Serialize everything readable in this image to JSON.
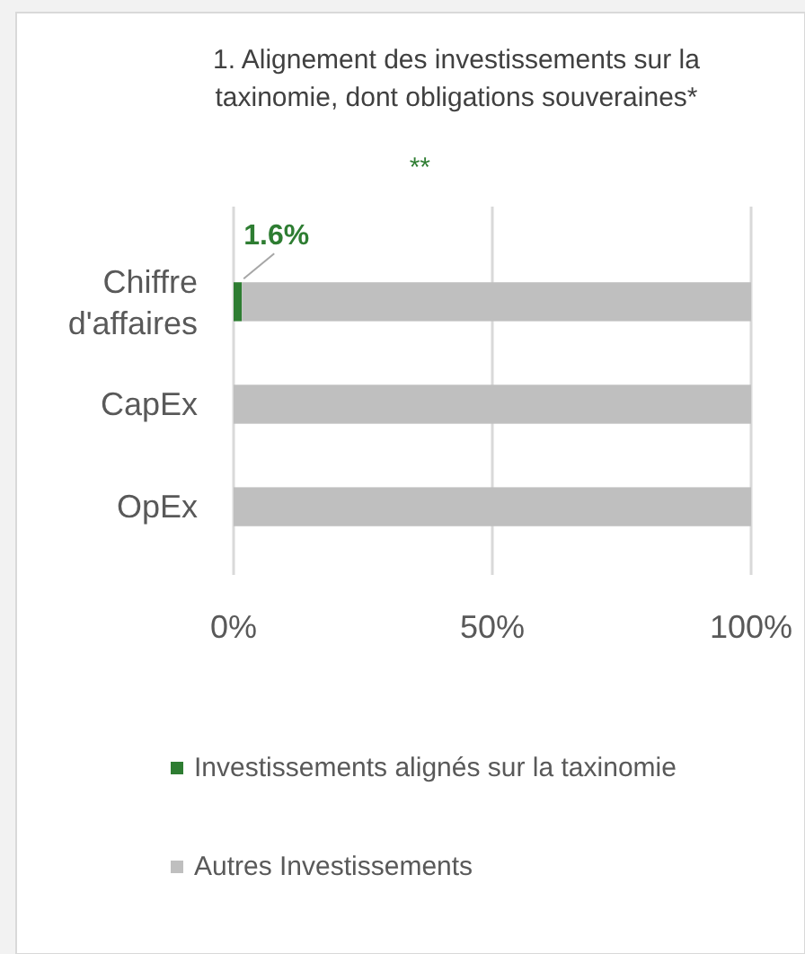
{
  "chart_data": {
    "type": "bar",
    "orientation": "horizontal",
    "stacked": true,
    "title": "1. Alignement des investissements sur la taxinomie, dont obligations souveraines*",
    "categories": [
      "Chiffre d'affaires",
      "CapEx",
      "OpEx"
    ],
    "series": [
      {
        "name": "Investissements alignés sur la taxinomie",
        "color": "#2e7d32",
        "values": [
          1.6,
          0,
          0
        ],
        "value_labels": [
          "1.6%",
          null,
          null
        ]
      },
      {
        "name": "Autres Investissements",
        "color": "#bfbfbf",
        "values": [
          98.4,
          100,
          100
        ]
      }
    ],
    "xlim": [
      0,
      100
    ],
    "xticks": [
      {
        "value": 0,
        "label": "0%"
      },
      {
        "value": 50,
        "label": "50%"
      },
      {
        "value": 100,
        "label": "100%"
      }
    ],
    "grid": "x",
    "legend": "bottom",
    "annotations": [
      "**"
    ]
  }
}
